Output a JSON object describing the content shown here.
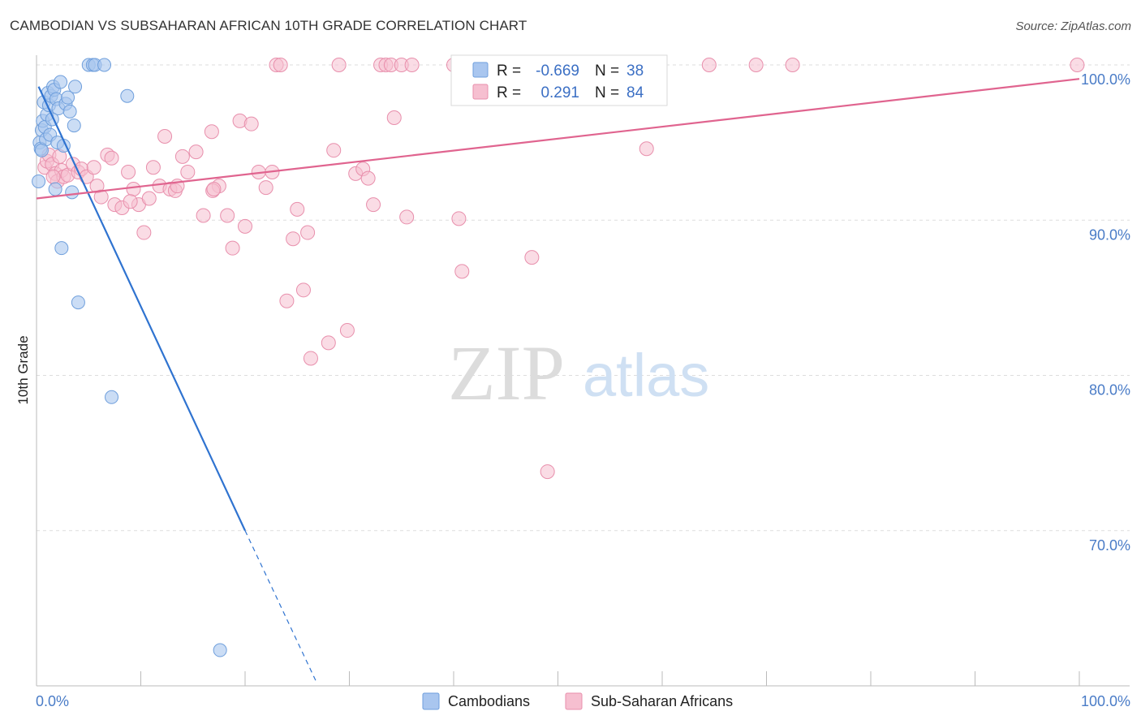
{
  "title": "CAMBODIAN VS SUBSAHARAN AFRICAN 10TH GRADE CORRELATION CHART",
  "source": "Source: ZipAtlas.com",
  "watermark": {
    "zip": "ZIP",
    "atlas": "atlas"
  },
  "legend_box": {
    "rows": [
      {
        "r_label": "R =",
        "r_value": "-0.669",
        "n_label": "N =",
        "n_value": "38"
      },
      {
        "r_label": "R =",
        "r_value": "0.291",
        "n_label": "N =",
        "n_value": "84"
      }
    ]
  },
  "bottom_legend": [
    "Cambodians",
    "Sub-Saharan Africans"
  ],
  "colors": {
    "cambodians_fill": "#a9c6ef",
    "cambodians_stroke": "#6f9fdc",
    "cambodians_line": "#2f73d0",
    "subsaharan_fill": "#f6bfd0",
    "subsaharan_stroke": "#e88fac",
    "subsaharan_line": "#e0648f",
    "grid": "#dddddd",
    "tick_label": "#4a7cc7"
  },
  "chart_data": {
    "type": "scatter",
    "title": "CAMBODIAN VS SUBSAHARAN AFRICAN 10TH GRADE CORRELATION CHART",
    "xlabel": "",
    "ylabel": "10th Grade",
    "xlim": [
      0,
      100
    ],
    "ylim": [
      60,
      100
    ],
    "x_tick_labels": [
      "0.0%",
      "100.0%"
    ],
    "y_ticks": [
      70,
      80,
      90,
      100
    ],
    "y_tick_labels": [
      "70.0%",
      "80.0%",
      "90.0%",
      "100.0%"
    ],
    "grid": true,
    "legend_position": "top-center",
    "series": [
      {
        "name": "Cambodians",
        "R": -0.669,
        "N": 38,
        "trend": {
          "x": [
            0.2,
            20.0
          ],
          "y": [
            98.6,
            70.0
          ],
          "dashed_to": [
            26.8,
            60.3
          ]
        },
        "points": [
          [
            0.2,
            92.5
          ],
          [
            0.3,
            95.0
          ],
          [
            0.4,
            94.6
          ],
          [
            0.5,
            95.8
          ],
          [
            0.6,
            96.4
          ],
          [
            0.7,
            97.6
          ],
          [
            0.8,
            96.0
          ],
          [
            0.9,
            95.2
          ],
          [
            1.0,
            96.8
          ],
          [
            1.1,
            98.2
          ],
          [
            1.2,
            97.4
          ],
          [
            1.3,
            95.5
          ],
          [
            1.4,
            98.0
          ],
          [
            1.6,
            98.6
          ],
          [
            1.7,
            98.4
          ],
          [
            1.8,
            92.0
          ],
          [
            1.9,
            97.8
          ],
          [
            2.0,
            95.0
          ],
          [
            2.1,
            97.2
          ],
          [
            2.3,
            98.9
          ],
          [
            2.4,
            88.2
          ],
          [
            2.6,
            94.8
          ],
          [
            2.8,
            97.5
          ],
          [
            3.0,
            97.9
          ],
          [
            3.2,
            97.0
          ],
          [
            3.4,
            91.8
          ],
          [
            3.6,
            96.1
          ],
          [
            3.7,
            98.6
          ],
          [
            4.0,
            84.7
          ],
          [
            5.0,
            100.0
          ],
          [
            5.4,
            100.0
          ],
          [
            5.6,
            100.0
          ],
          [
            6.5,
            100.0
          ],
          [
            7.2,
            78.6
          ],
          [
            8.7,
            98.0
          ],
          [
            17.6,
            62.3
          ],
          [
            0.5,
            94.5
          ],
          [
            1.5,
            96.5
          ]
        ]
      },
      {
        "name": "Sub-Saharan Africans",
        "R": 0.291,
        "N": 84,
        "trend": {
          "x": [
            0.0,
            100.0
          ],
          "y": [
            91.4,
            99.1
          ]
        },
        "points": [
          [
            0.8,
            93.4
          ],
          [
            1.0,
            93.8
          ],
          [
            1.2,
            94.2
          ],
          [
            1.5,
            93.6
          ],
          [
            1.8,
            93.0
          ],
          [
            2.0,
            92.5
          ],
          [
            2.4,
            93.2
          ],
          [
            2.6,
            92.8
          ],
          [
            3.0,
            92.9
          ],
          [
            3.5,
            93.6
          ],
          [
            4.0,
            93.1
          ],
          [
            4.3,
            93.3
          ],
          [
            4.8,
            92.8
          ],
          [
            5.5,
            93.4
          ],
          [
            5.8,
            92.2
          ],
          [
            6.2,
            91.5
          ],
          [
            6.8,
            94.2
          ],
          [
            7.2,
            94.0
          ],
          [
            7.5,
            91.0
          ],
          [
            8.2,
            90.8
          ],
          [
            8.8,
            93.1
          ],
          [
            9.3,
            92.0
          ],
          [
            9.8,
            91.0
          ],
          [
            10.3,
            89.2
          ],
          [
            10.8,
            91.4
          ],
          [
            11.2,
            93.4
          ],
          [
            11.8,
            92.2
          ],
          [
            12.8,
            92.0
          ],
          [
            13.3,
            91.9
          ],
          [
            14.0,
            94.1
          ],
          [
            14.5,
            93.1
          ],
          [
            15.3,
            94.4
          ],
          [
            16.0,
            90.3
          ],
          [
            16.8,
            95.7
          ],
          [
            17.5,
            92.2
          ],
          [
            18.3,
            90.3
          ],
          [
            18.8,
            88.2
          ],
          [
            19.5,
            96.4
          ],
          [
            20.0,
            89.6
          ],
          [
            20.6,
            96.2
          ],
          [
            21.3,
            93.1
          ],
          [
            22.0,
            92.1
          ],
          [
            22.6,
            93.1
          ],
          [
            23.0,
            100.0
          ],
          [
            23.4,
            100.0
          ],
          [
            24.0,
            84.8
          ],
          [
            24.6,
            88.8
          ],
          [
            25.0,
            90.7
          ],
          [
            25.6,
            85.5
          ],
          [
            26.0,
            89.2
          ],
          [
            26.3,
            81.1
          ],
          [
            28.0,
            82.1
          ],
          [
            28.5,
            94.5
          ],
          [
            29.0,
            100.0
          ],
          [
            29.8,
            82.9
          ],
          [
            30.6,
            93.0
          ],
          [
            31.3,
            93.3
          ],
          [
            31.8,
            92.7
          ],
          [
            32.3,
            91.0
          ],
          [
            33.0,
            100.0
          ],
          [
            33.5,
            100.0
          ],
          [
            34.0,
            100.0
          ],
          [
            34.3,
            96.6
          ],
          [
            35.0,
            100.0
          ],
          [
            35.5,
            90.2
          ],
          [
            36.0,
            100.0
          ],
          [
            40.0,
            100.0
          ],
          [
            40.5,
            90.1
          ],
          [
            40.8,
            86.7
          ],
          [
            47.0,
            100.0
          ],
          [
            47.5,
            87.6
          ],
          [
            49.0,
            73.8
          ],
          [
            58.5,
            94.6
          ],
          [
            64.5,
            100.0
          ],
          [
            69.0,
            100.0
          ],
          [
            72.5,
            100.0
          ],
          [
            99.8,
            100.0
          ],
          [
            16.9,
            91.9
          ],
          [
            12.3,
            95.4
          ],
          [
            2.2,
            94.1
          ],
          [
            13.5,
            92.2
          ],
          [
            9.0,
            91.2
          ],
          [
            1.6,
            92.8
          ],
          [
            17.0,
            92.0
          ]
        ]
      }
    ]
  }
}
